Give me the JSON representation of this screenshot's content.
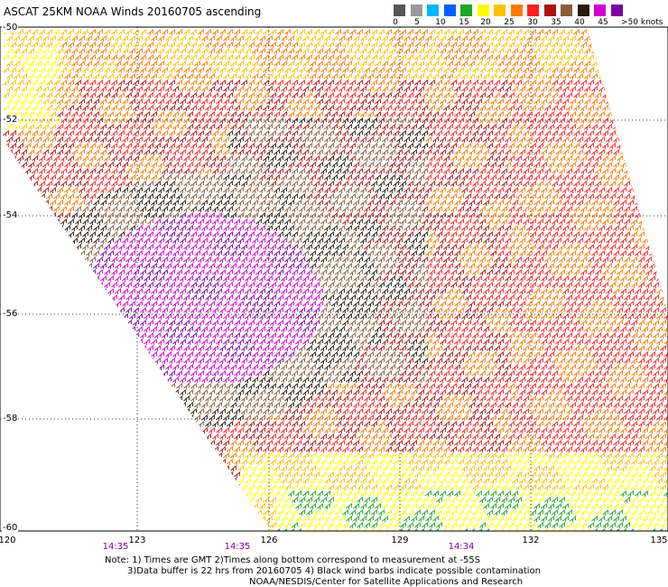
{
  "title": "ASCAT 25KM NOAA Winds 20160705 ascending",
  "legend": {
    "colors": [
      "#555555",
      "#9a9a9a",
      "#00b5ff",
      "#0060ff",
      "#1fa51f",
      "#ffff00",
      "#ffc000",
      "#ff7a00",
      "#ff2020",
      "#b01010",
      "#8b5a3c",
      "#2a1a0a",
      "#d000d0",
      "#7b00a6"
    ],
    "ticks": [
      "0",
      "5",
      "10",
      "15",
      "20",
      "25",
      "30",
      "35",
      "40",
      "45"
    ],
    "unit": ">50 knots"
  },
  "map": {
    "lat_labels": [
      "-50",
      "-52",
      "-54",
      "-56",
      "-58",
      "-60"
    ],
    "lon_labels": [
      "120",
      "123",
      "126",
      "129",
      "132",
      "135"
    ],
    "time_labels": [
      "14:35",
      "14:35",
      "14:34"
    ]
  },
  "notes": {
    "line1": "Note: 1) Times are GMT 2)Times along bottom correspond to measurement at -55S",
    "line2": "3)Data buffer is 22 hrs from 20160705 4) Black wind barbs indicate possible contamination",
    "line3": "NOAA/NESDIS/Center for Satellite Applications and Research"
  }
}
